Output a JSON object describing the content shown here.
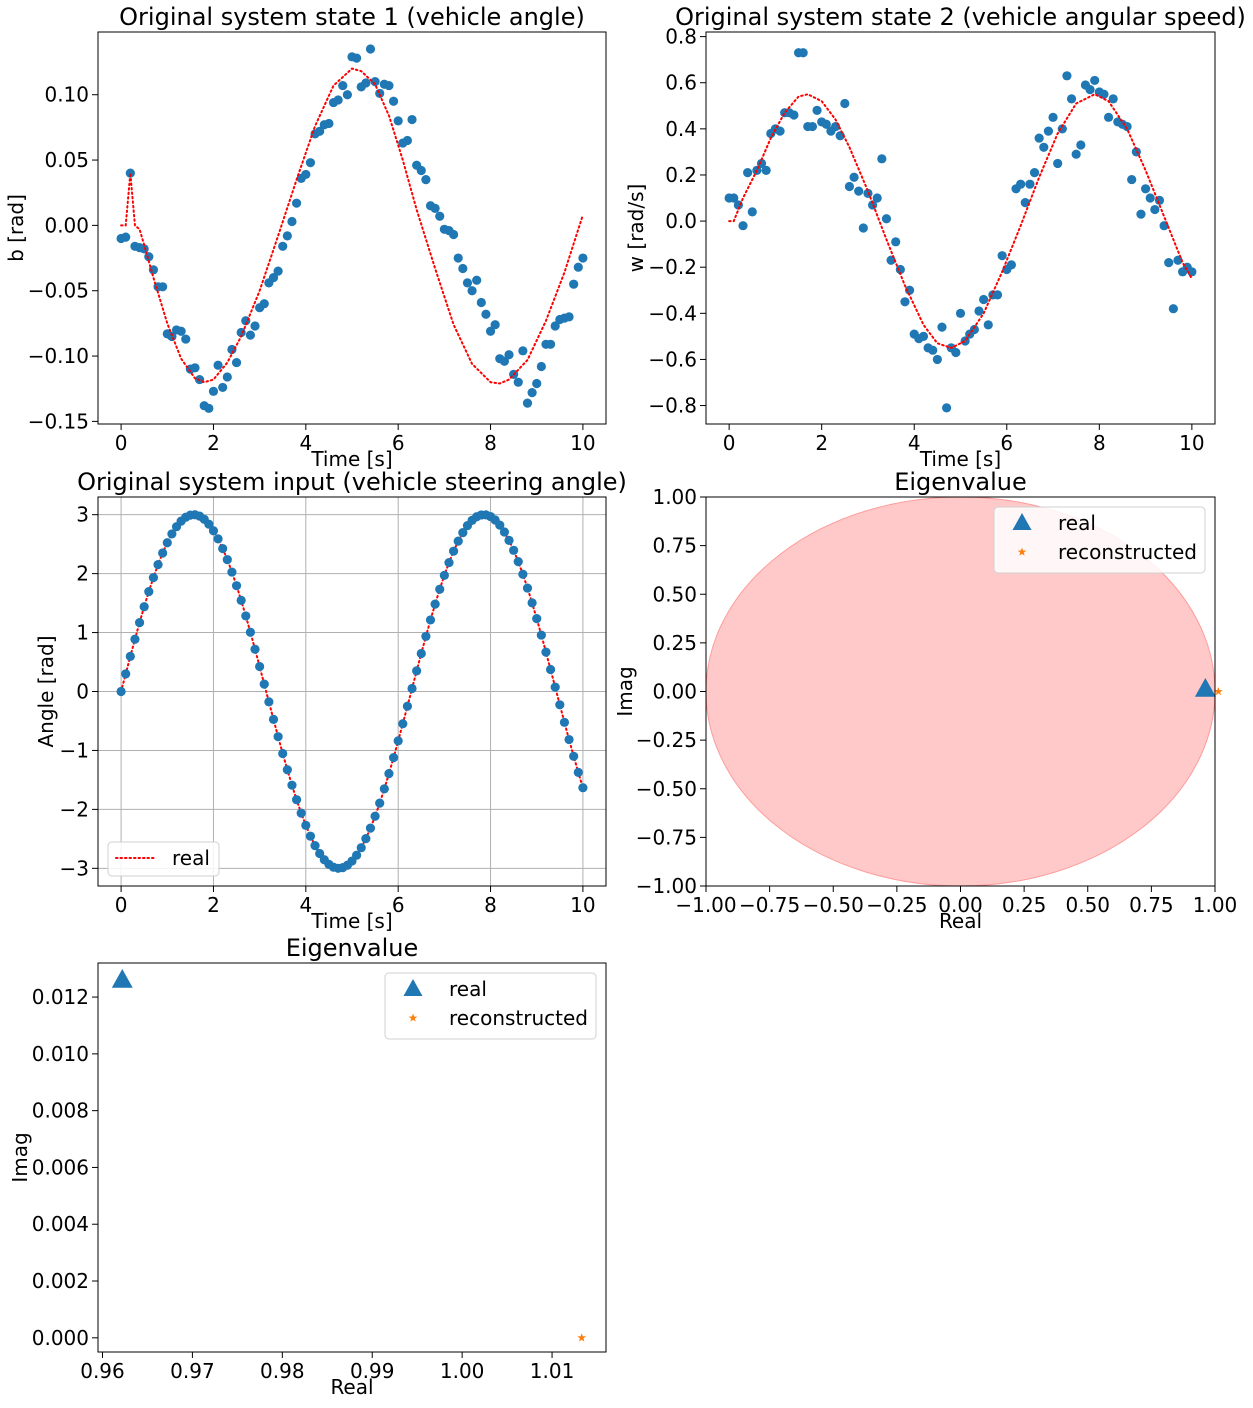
{
  "colors": {
    "scatter": "#1f77b4",
    "dotted_line": "#ff0000",
    "reconstructed": "#ff7f0e",
    "unit_circle": "#ffc9c9",
    "grid": "#b0b0b0"
  },
  "chart_data": [
    {
      "id": "state1",
      "type": "scatter",
      "title": "Original system state 1 (vehicle angle)",
      "xlabel": "Time [s]",
      "ylabel": "b [rad]",
      "xlim": [
        -0.5,
        10.5
      ],
      "ylim": [
        -0.152,
        0.148
      ],
      "xticks": [
        0,
        2,
        4,
        6,
        8,
        10
      ],
      "xticklabels": [
        "0",
        "2",
        "4",
        "6",
        "8",
        "10"
      ],
      "yticks": [
        -0.15,
        -0.1,
        -0.05,
        0.0,
        0.05,
        0.1
      ],
      "yticklabels": [
        "−0.15",
        "−0.10",
        "−0.05",
        "0.00",
        "0.05",
        "0.10"
      ],
      "grid": false,
      "series": [
        {
          "kind": "scatter",
          "marker": "circle",
          "x": [
            0.0,
            0.1,
            0.2,
            0.3,
            0.4,
            0.5,
            0.6,
            0.7,
            0.8,
            0.9,
            1.0,
            1.1,
            1.2,
            1.3,
            1.4,
            1.5,
            1.6,
            1.7,
            1.8,
            1.9,
            2.0,
            2.1,
            2.2,
            2.3,
            2.4,
            2.5,
            2.6,
            2.7,
            2.8,
            2.9,
            3.0,
            3.1,
            3.2,
            3.3,
            3.4,
            3.5,
            3.6,
            3.7,
            3.8,
            3.9,
            4.0,
            4.1,
            4.2,
            4.3,
            4.4,
            4.5,
            4.6,
            4.7,
            4.8,
            4.9,
            5.0,
            5.1,
            5.2,
            5.3,
            5.4,
            5.5,
            5.6,
            5.7,
            5.8,
            5.9,
            6.0,
            6.1,
            6.2,
            6.3,
            6.4,
            6.5,
            6.6,
            6.7,
            6.8,
            6.9,
            7.0,
            7.1,
            7.2,
            7.3,
            7.4,
            7.5,
            7.6,
            7.7,
            7.8,
            7.9,
            8.0,
            8.1,
            8.2,
            8.3,
            8.4,
            8.5,
            8.6,
            8.7,
            8.8,
            8.9,
            9.0,
            9.1,
            9.2,
            9.3,
            9.4,
            9.5,
            9.6,
            9.7,
            9.8,
            9.9,
            10.0
          ],
          "y": [
            -0.01,
            -0.009,
            0.04,
            -0.016,
            -0.017,
            -0.018,
            -0.024,
            -0.034,
            -0.047,
            -0.047,
            -0.083,
            -0.085,
            -0.08,
            -0.081,
            -0.087,
            -0.11,
            -0.109,
            -0.118,
            -0.138,
            -0.14,
            -0.127,
            -0.107,
            -0.124,
            -0.116,
            -0.095,
            -0.105,
            -0.082,
            -0.073,
            -0.084,
            -0.077,
            -0.063,
            -0.06,
            -0.044,
            -0.04,
            -0.035,
            -0.016,
            -0.008,
            0.003,
            0.017,
            0.036,
            0.039,
            0.048,
            0.07,
            0.072,
            0.077,
            0.078,
            0.094,
            0.096,
            0.107,
            0.1,
            0.129,
            0.128,
            0.106,
            0.109,
            0.135,
            0.11,
            0.101,
            0.108,
            0.107,
            0.095,
            0.08,
            0.063,
            0.065,
            0.081,
            0.046,
            0.042,
            0.035,
            0.015,
            0.013,
            0.007,
            -0.003,
            -0.004,
            -0.007,
            -0.025,
            -0.033,
            -0.044,
            -0.05,
            -0.042,
            -0.059,
            -0.068,
            -0.081,
            -0.076,
            -0.102,
            -0.104,
            -0.099,
            -0.114,
            -0.12,
            -0.096,
            -0.136,
            -0.128,
            -0.121,
            -0.108,
            -0.091,
            -0.091,
            -0.077,
            -0.072,
            -0.071,
            -0.07,
            -0.045,
            -0.032,
            -0.025
          ],
          "note_x": "x step 0.1"
        },
        {
          "kind": "line",
          "name": "",
          "style": "dotted",
          "x": [
            0.0,
            0.1,
            0.2,
            0.3,
            0.4,
            0.5,
            0.7,
            1.0,
            1.3,
            1.6,
            1.8,
            2.0,
            2.3,
            2.6,
            3.0,
            3.4,
            3.8,
            4.2,
            4.6,
            5.0,
            5.2,
            5.5,
            5.8,
            6.1,
            6.4,
            6.8,
            7.2,
            7.6,
            8.0,
            8.2,
            8.4,
            8.8,
            9.2,
            9.6,
            9.8,
            10.0
          ],
          "y": [
            0.0,
            0.0,
            0.04,
            0.0,
            -0.003,
            -0.015,
            -0.04,
            -0.075,
            -0.102,
            -0.117,
            -0.12,
            -0.118,
            -0.105,
            -0.085,
            -0.05,
            -0.008,
            0.035,
            0.076,
            0.107,
            0.12,
            0.118,
            0.108,
            0.084,
            0.05,
            0.012,
            -0.033,
            -0.076,
            -0.106,
            -0.12,
            -0.121,
            -0.118,
            -0.103,
            -0.073,
            -0.036,
            -0.014,
            0.008
          ]
        }
      ]
    },
    {
      "id": "state2",
      "type": "scatter",
      "title": "Original system state 2 (vehicle angular speed)",
      "xlabel": "Time [s]",
      "ylabel": "w [rad/s]",
      "xlim": [
        -0.5,
        10.5
      ],
      "ylim": [
        -0.88,
        0.82
      ],
      "xticks": [
        0,
        2,
        4,
        6,
        8,
        10
      ],
      "xticklabels": [
        "0",
        "2",
        "4",
        "6",
        "8",
        "10"
      ],
      "yticks": [
        -0.8,
        -0.6,
        -0.4,
        -0.2,
        0.0,
        0.2,
        0.4,
        0.6,
        0.8
      ],
      "yticklabels": [
        "−0.8",
        "−0.6",
        "−0.4",
        "−0.2",
        "0.0",
        "0.2",
        "0.4",
        "0.6",
        "0.8"
      ],
      "grid": false,
      "series": [
        {
          "kind": "scatter",
          "marker": "circle",
          "x": [
            0.0,
            0.1,
            0.2,
            0.3,
            0.4,
            0.5,
            0.6,
            0.7,
            0.8,
            0.9,
            1.0,
            1.1,
            1.2,
            1.3,
            1.4,
            1.5,
            1.6,
            1.7,
            1.8,
            1.9,
            2.0,
            2.1,
            2.2,
            2.3,
            2.4,
            2.5,
            2.6,
            2.7,
            2.8,
            2.9,
            3.0,
            3.1,
            3.2,
            3.3,
            3.4,
            3.5,
            3.6,
            3.7,
            3.8,
            3.9,
            4.0,
            4.1,
            4.2,
            4.3,
            4.4,
            4.5,
            4.6,
            4.7,
            4.8,
            4.9,
            5.0,
            5.1,
            5.2,
            5.3,
            5.4,
            5.5,
            5.6,
            5.7,
            5.8,
            5.9,
            6.0,
            6.1,
            6.2,
            6.3,
            6.4,
            6.5,
            6.6,
            6.7,
            6.8,
            6.9,
            7.0,
            7.1,
            7.2,
            7.3,
            7.4,
            7.5,
            7.6,
            7.7,
            7.8,
            7.9,
            8.0,
            8.1,
            8.2,
            8.3,
            8.4,
            8.5,
            8.6,
            8.7,
            8.8,
            8.9,
            9.0,
            9.1,
            9.2,
            9.3,
            9.4,
            9.5,
            9.6,
            9.7,
            9.8,
            9.9,
            10.0
          ],
          "y": [
            0.1,
            0.1,
            0.07,
            -0.02,
            0.21,
            0.04,
            0.22,
            0.25,
            0.22,
            0.38,
            0.4,
            0.39,
            0.47,
            0.47,
            0.46,
            0.73,
            0.73,
            0.41,
            0.41,
            0.48,
            0.43,
            0.42,
            0.39,
            0.41,
            0.37,
            0.51,
            0.15,
            0.19,
            0.13,
            -0.03,
            0.12,
            0.07,
            0.1,
            0.27,
            0.01,
            -0.17,
            -0.09,
            -0.21,
            -0.35,
            -0.3,
            -0.49,
            -0.51,
            -0.5,
            -0.55,
            -0.56,
            -0.6,
            -0.46,
            -0.81,
            -0.55,
            -0.57,
            -0.4,
            -0.52,
            -0.49,
            -0.47,
            -0.39,
            -0.34,
            -0.45,
            -0.32,
            -0.32,
            -0.15,
            -0.21,
            -0.19,
            0.14,
            0.16,
            0.08,
            0.16,
            0.21,
            0.36,
            0.32,
            0.39,
            0.45,
            0.25,
            0.4,
            0.63,
            0.53,
            0.29,
            0.33,
            0.59,
            0.57,
            0.61,
            0.56,
            0.55,
            0.45,
            0.53,
            0.43,
            0.42,
            0.41,
            0.18,
            0.3,
            0.03,
            0.14,
            0.1,
            0.05,
            0.09,
            -0.02,
            -0.18,
            -0.38,
            -0.17,
            -0.22,
            -0.2,
            -0.22
          ],
          "note_x": "x step 0.1"
        },
        {
          "kind": "line",
          "name": "",
          "style": "dotted",
          "x": [
            0.0,
            0.1,
            0.3,
            0.6,
            0.9,
            1.2,
            1.5,
            1.7,
            2.0,
            2.3,
            2.6,
            3.0,
            3.4,
            3.8,
            4.2,
            4.5,
            4.8,
            5.1,
            5.5,
            5.9,
            6.3,
            6.7,
            7.1,
            7.5,
            7.9,
            8.2,
            8.6,
            9.0,
            9.4,
            9.8,
            10.0
          ],
          "y": [
            0.0,
            0.0,
            0.1,
            0.22,
            0.36,
            0.47,
            0.54,
            0.55,
            0.52,
            0.44,
            0.32,
            0.13,
            -0.08,
            -0.28,
            -0.45,
            -0.53,
            -0.55,
            -0.52,
            -0.4,
            -0.22,
            -0.02,
            0.19,
            0.38,
            0.51,
            0.55,
            0.52,
            0.4,
            0.22,
            0.02,
            -0.18,
            -0.25
          ]
        }
      ]
    },
    {
      "id": "input",
      "type": "line",
      "title": "Original system input (vehicle steering angle)",
      "xlabel": "Time [s]",
      "ylabel": "Angle [rad]",
      "xlim": [
        -0.5,
        10.5
      ],
      "ylim": [
        -3.3,
        3.3
      ],
      "xticks": [
        0,
        2,
        4,
        6,
        8,
        10
      ],
      "xticklabels": [
        "0",
        "2",
        "4",
        "6",
        "8",
        "10"
      ],
      "yticks": [
        -3,
        -2,
        -1,
        0,
        1,
        2,
        3
      ],
      "yticklabels": [
        "−3",
        "−2",
        "−1",
        "0",
        "1",
        "2",
        "3"
      ],
      "grid": true,
      "legend": {
        "position": "lower-left",
        "entries": [
          {
            "label": "real",
            "style": "dotted"
          }
        ]
      },
      "series": [
        {
          "kind": "line",
          "name": "real",
          "style": "dotted",
          "function": "3*sin(x)",
          "x": [
            0.0,
            0.1,
            0.2,
            0.3,
            0.4,
            0.5,
            0.6,
            0.7,
            0.8,
            0.9,
            1.0,
            1.1,
            1.2,
            1.3,
            1.4,
            1.5,
            1.6,
            1.7,
            1.8,
            1.9,
            2.0,
            2.1,
            2.2,
            2.3,
            2.4,
            2.5,
            2.6,
            2.7,
            2.8,
            2.9,
            3.0,
            3.1,
            3.2,
            3.3,
            3.4,
            3.5,
            3.6,
            3.7,
            3.8,
            3.9,
            4.0,
            4.1,
            4.2,
            4.3,
            4.4,
            4.5,
            4.6,
            4.7,
            4.8,
            4.9,
            5.0,
            5.1,
            5.2,
            5.3,
            5.4,
            5.5,
            5.6,
            5.7,
            5.8,
            5.9,
            6.0,
            6.1,
            6.2,
            6.3,
            6.4,
            6.5,
            6.6,
            6.7,
            6.8,
            6.9,
            7.0,
            7.1,
            7.2,
            7.3,
            7.4,
            7.5,
            7.6,
            7.7,
            7.8,
            7.9,
            8.0,
            8.1,
            8.2,
            8.3,
            8.4,
            8.5,
            8.6,
            8.7,
            8.8,
            8.9,
            9.0,
            9.1,
            9.2,
            9.3,
            9.4,
            9.5,
            9.6,
            9.7,
            9.8,
            9.9,
            10.0
          ]
        },
        {
          "kind": "scatter",
          "marker": "circle",
          "function": "3*sin(x)",
          "x": [
            0.0,
            0.1,
            0.2,
            0.3,
            0.4,
            0.5,
            0.6,
            0.7,
            0.8,
            0.9,
            1.0,
            1.1,
            1.2,
            1.3,
            1.4,
            1.5,
            1.6,
            1.7,
            1.8,
            1.9,
            2.0,
            2.1,
            2.2,
            2.3,
            2.4,
            2.5,
            2.6,
            2.7,
            2.8,
            2.9,
            3.0,
            3.1,
            3.2,
            3.3,
            3.4,
            3.5,
            3.6,
            3.7,
            3.8,
            3.9,
            4.0,
            4.1,
            4.2,
            4.3,
            4.4,
            4.5,
            4.6,
            4.7,
            4.8,
            4.9,
            5.0,
            5.1,
            5.2,
            5.3,
            5.4,
            5.5,
            5.6,
            5.7,
            5.8,
            5.9,
            6.0,
            6.1,
            6.2,
            6.3,
            6.4,
            6.5,
            6.6,
            6.7,
            6.8,
            6.9,
            7.0,
            7.1,
            7.2,
            7.3,
            7.4,
            7.5,
            7.6,
            7.7,
            7.8,
            7.9,
            8.0,
            8.1,
            8.2,
            8.3,
            8.4,
            8.5,
            8.6,
            8.7,
            8.8,
            8.9,
            9.0,
            9.1,
            9.2,
            9.3,
            9.4,
            9.5,
            9.6,
            9.7,
            9.8,
            9.9,
            10.0
          ]
        }
      ]
    },
    {
      "id": "eig_circle",
      "type": "scatter",
      "title": "Eigenvalue",
      "xlabel": "Real",
      "ylabel": "Imag",
      "xlim": [
        -1.0,
        1.0
      ],
      "ylim": [
        -1.0,
        1.0
      ],
      "xticks": [
        -1.0,
        -0.75,
        -0.5,
        -0.25,
        0.0,
        0.25,
        0.5,
        0.75,
        1.0
      ],
      "xticklabels": [
        "−1.00",
        "−0.75",
        "−0.50",
        "−0.25",
        "0.00",
        "0.25",
        "0.50",
        "0.75",
        "1.00"
      ],
      "yticks": [
        -1.0,
        -0.75,
        -0.5,
        -0.25,
        0.0,
        0.25,
        0.5,
        0.75,
        1.0
      ],
      "yticklabels": [
        "−1.00",
        "−0.75",
        "−0.50",
        "−0.25",
        "0.00",
        "0.25",
        "0.50",
        "0.75",
        "1.00"
      ],
      "grid": false,
      "unit_circle": {
        "radius": 1.0,
        "filled": true
      },
      "legend": {
        "position": "upper-right",
        "entries": [
          {
            "label": "real",
            "marker": "triangle"
          },
          {
            "label": "reconstructed",
            "marker": "star"
          }
        ]
      },
      "series": [
        {
          "kind": "scatter",
          "name": "real",
          "marker": "triangle",
          "x": [
            0.9622
          ],
          "y": [
            0.0126
          ]
        },
        {
          "kind": "scatter",
          "name": "reconstructed",
          "marker": "star",
          "x": [
            1.0133
          ],
          "y": [
            0.0
          ]
        }
      ]
    },
    {
      "id": "eig_zoom",
      "type": "scatter",
      "title": "Eigenvalue",
      "xlabel": "Real",
      "ylabel": "Imag",
      "xlim": [
        0.9595,
        1.016
      ],
      "ylim": [
        -0.0005,
        0.0132
      ],
      "xticks": [
        0.96,
        0.97,
        0.98,
        0.99,
        1.0,
        1.01
      ],
      "xticklabels": [
        "0.96",
        "0.97",
        "0.98",
        "0.99",
        "1.00",
        "1.01"
      ],
      "yticks": [
        0.0,
        0.002,
        0.004,
        0.006,
        0.008,
        0.01,
        0.012
      ],
      "yticklabels": [
        "0.000",
        "0.002",
        "0.004",
        "0.006",
        "0.008",
        "0.010",
        "0.012"
      ],
      "grid": false,
      "legend": {
        "position": "upper-right",
        "entries": [
          {
            "label": "real",
            "marker": "triangle"
          },
          {
            "label": "reconstructed",
            "marker": "star"
          }
        ]
      },
      "series": [
        {
          "kind": "scatter",
          "name": "real",
          "marker": "triangle",
          "x": [
            0.9622
          ],
          "y": [
            0.0126
          ]
        },
        {
          "kind": "scatter",
          "name": "reconstructed",
          "marker": "star",
          "x": [
            1.0133
          ],
          "y": [
            0.0
          ]
        }
      ]
    }
  ]
}
